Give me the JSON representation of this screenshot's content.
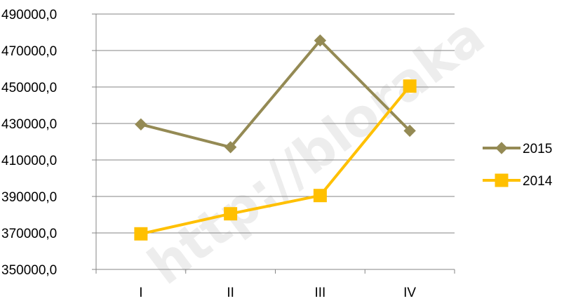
{
  "watermark": "http://bloraka",
  "chart_data": {
    "type": "line",
    "categories": [
      "I",
      "II",
      "III",
      "IV"
    ],
    "ylim": [
      350000,
      490000
    ],
    "yticks": [
      350000,
      370000,
      390000,
      410000,
      430000,
      450000,
      470000,
      490000
    ],
    "ytick_labels": [
      "350000,0",
      "370000,0",
      "390000,0",
      "410000,0",
      "430000,0",
      "450000,0",
      "470000,0",
      "490000,0"
    ],
    "grid": true,
    "legend": "right",
    "series": [
      {
        "name": "2015",
        "values": [
          429500,
          417000,
          475500,
          426000
        ],
        "color": "#948A54",
        "marker": "diamond"
      },
      {
        "name": "2014",
        "values": [
          369500,
          380500,
          390500,
          450500
        ],
        "color": "#FFC000",
        "marker": "square"
      }
    ],
    "title": "",
    "xlabel": "",
    "ylabel": ""
  }
}
